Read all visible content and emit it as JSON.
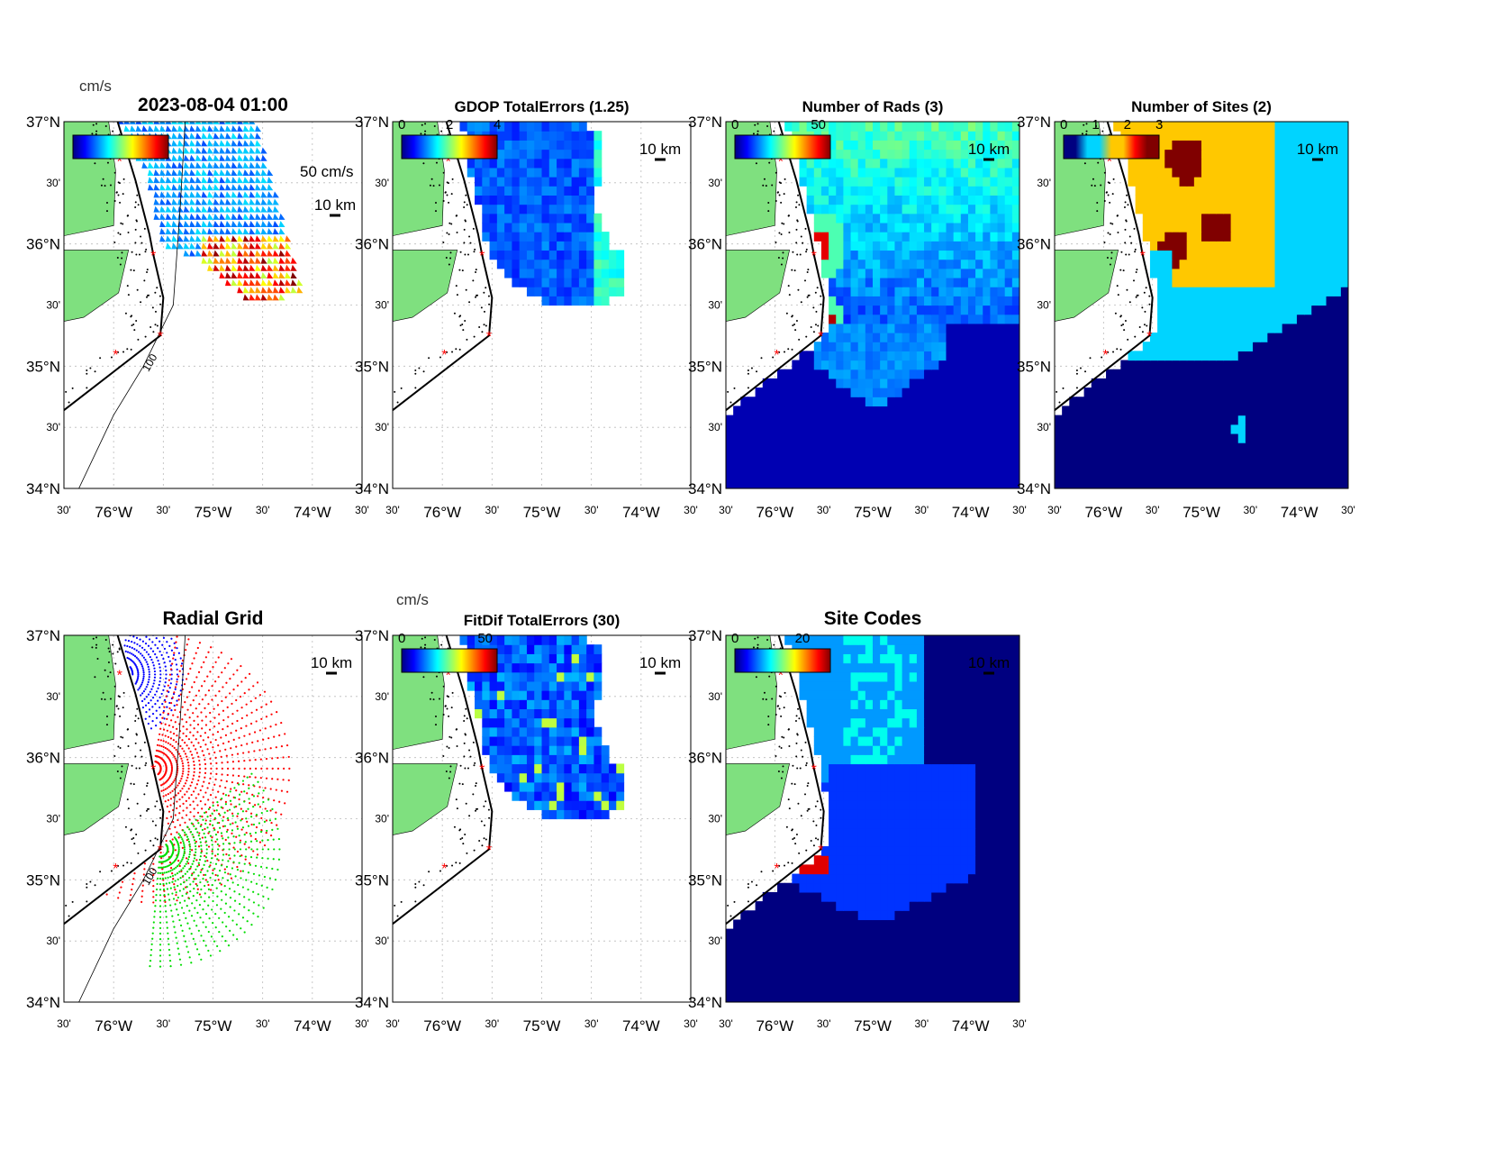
{
  "chart_data": [
    {
      "id": "p1",
      "type": "heatmap",
      "title": "2023-08-04 01:00",
      "layer": "vectors",
      "colorbar": {
        "label": "cm/s",
        "ticks": []
      },
      "legend_vector": "50 cm/s",
      "scale_bar": "10 km",
      "isobath": "100"
    },
    {
      "id": "p2",
      "type": "heatmap",
      "title": "GDOP TotalErrors (1.25)",
      "layer": "gdop",
      "colorbar": {
        "label": "",
        "ticks": [
          "0",
          "2",
          "4"
        ],
        "range": [
          0,
          4
        ]
      },
      "scale_bar": "10 km",
      "contour_label": "1.25"
    },
    {
      "id": "p3",
      "type": "heatmap",
      "title": "Number of Rads (3)",
      "layer": "rads",
      "colorbar": {
        "label": "",
        "ticks": [
          "0",
          "50"
        ],
        "range": [
          0,
          60
        ]
      },
      "scale_bar": "10 km",
      "contour_label": "3"
    },
    {
      "id": "p4",
      "type": "heatmap",
      "title": "Number of Sites (2)",
      "layer": "sites",
      "colorbar": {
        "label": "",
        "ticks": [
          "0",
          "1",
          "2",
          "3"
        ],
        "range": [
          0,
          3
        ]
      },
      "scale_bar": "10 km",
      "contour_label": "2"
    },
    {
      "id": "p5",
      "type": "scatter",
      "title": "Radial Grid",
      "layer": "radial",
      "colorbar": null,
      "scale_bar": "10 km",
      "isobath": "100"
    },
    {
      "id": "p6",
      "type": "heatmap",
      "title": "FitDif TotalErrors (30)",
      "layer": "fitdif",
      "colorbar": {
        "label": "cm/s",
        "ticks": [
          "0",
          "50"
        ],
        "range": [
          0,
          60
        ]
      },
      "scale_bar": "10 km",
      "contour_label": "30"
    },
    {
      "id": "p7",
      "type": "heatmap",
      "title": "Site Codes",
      "layer": "codes",
      "colorbar": {
        "label": "",
        "ticks": [
          "0",
          "20"
        ],
        "range": [
          0,
          30
        ]
      },
      "scale_bar": "10 km"
    }
  ],
  "axes": {
    "lon_range": [
      -76.5,
      -73.5
    ],
    "lat_range": [
      34,
      37
    ],
    "xticks": [
      {
        "v": -76.5,
        "l": "30'"
      },
      {
        "v": -76,
        "l": "76°W"
      },
      {
        "v": -75.5,
        "l": "30'"
      },
      {
        "v": -75,
        "l": "75°W"
      },
      {
        "v": -74.5,
        "l": "30'"
      },
      {
        "v": -74,
        "l": "74°W"
      },
      {
        "v": -73.5,
        "l": "30'"
      }
    ],
    "yticks": [
      {
        "v": 37,
        "l": "37°N"
      },
      {
        "v": 36.5,
        "l": "30'"
      },
      {
        "v": 36,
        "l": "36°N"
      },
      {
        "v": 35.5,
        "l": "30'"
      },
      {
        "v": 35,
        "l": "35°N"
      },
      {
        "v": 34.5,
        "l": "30'"
      },
      {
        "v": 34,
        "l": "34°N"
      }
    ]
  },
  "sites": [
    {
      "lon": -75.94,
      "lat": 36.68
    },
    {
      "lon": -75.6,
      "lat": 35.91
    },
    {
      "lon": -75.53,
      "lat": 35.25
    },
    {
      "lon": -75.98,
      "lat": 35.1
    }
  ],
  "colors": {
    "land": "#7fe07f",
    "site": "#ff0000",
    "grid": "#bbbbbb"
  }
}
